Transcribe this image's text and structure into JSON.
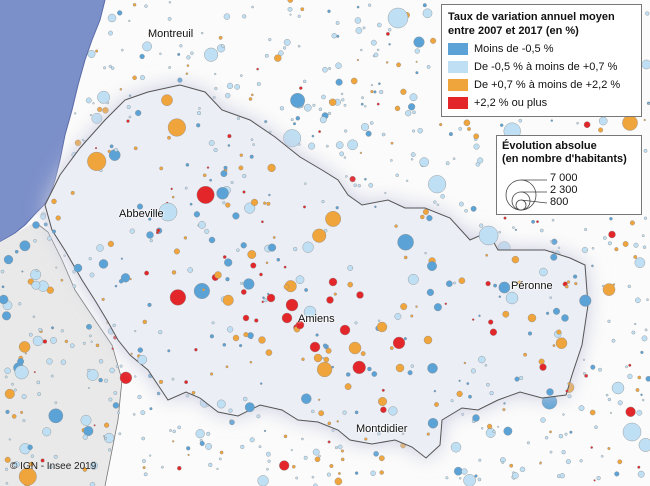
{
  "legend": {
    "title_line1": "Taux de variation annuel moyen",
    "title_line2": "entre 2007 et 2017 (en %)",
    "classes": [
      {
        "label": "Moins de -0,5 %",
        "color": "#5ba3d6"
      },
      {
        "label": "De -0,5 % à moins de +0,7 %",
        "color": "#bfe0f4"
      },
      {
        "label": "De +0,7 % à moins de +2,2 %",
        "color": "#efa43c"
      },
      {
        "label": "+2,2 % ou plus",
        "color": "#e3262a"
      }
    ]
  },
  "size_legend": {
    "title_line1": "Évolution absolue",
    "title_line2": "(en nombre d'habitants)",
    "values": [
      "7 000",
      "2 300",
      "800"
    ]
  },
  "places": {
    "montreuil": "Montreuil",
    "abbeville": "Abbeville",
    "amiens": "Amiens",
    "peronne": "Péronne",
    "montdidier": "Montdidier"
  },
  "credit": "© IGN - Insee 2019",
  "colors": {
    "sea": "#7b8fc9",
    "land": "#fbfbfb",
    "region_fill": "#eceef6",
    "region_halo": "#c7cadf",
    "region_border": "#555"
  }
}
